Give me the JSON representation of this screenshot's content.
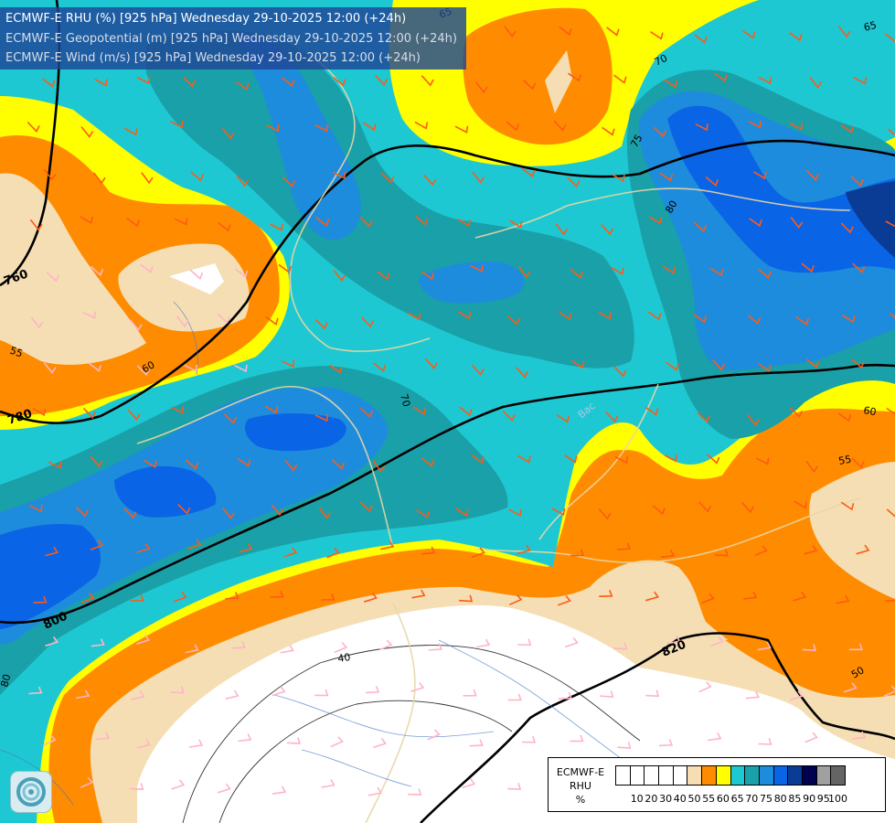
{
  "titles": [
    "ECMWF-E RHU (%) [925 hPa] Wednesday 29-10-2025 12:00 (+24h)",
    "ECMWF-E Geopotential (m) [925 hPa] Wednesday 29-10-2025 12:00 (+24h)",
    "ECMWF-E Wind (m/s) [925 hPa] Wednesday 29-10-2025 12:00 (+24h)"
  ],
  "legend": {
    "caption": [
      "ECMWF-E",
      "RHU",
      "%"
    ],
    "ticks": [
      "10",
      "20",
      "30",
      "40",
      "50",
      "55",
      "60",
      "65",
      "70",
      "75",
      "80",
      "85",
      "90",
      "95",
      "100"
    ],
    "colors": [
      "#ffffff",
      "#ffffff",
      "#ffffff",
      "#ffffff",
      "#ffffff",
      "#f5deb3",
      "#ff8c00",
      "#ffff00",
      "#1ec8d2",
      "#1aa0a8",
      "#1e8cdc",
      "#0a64e6",
      "#0a3c96",
      "#000050",
      "#a0a0a0",
      "#646464"
    ]
  },
  "geopotential_labels": [
    "760",
    "780",
    "800",
    "820"
  ],
  "rhu_labels": [
    "65",
    "65",
    "70",
    "75",
    "80",
    "55",
    "60",
    "70",
    "60",
    "55",
    "40",
    "50",
    "80"
  ],
  "place_labels": [
    "Bac"
  ],
  "colors": {
    "white": "#ffffff",
    "wheat": "#f5deb3",
    "orange": "#ff8c00",
    "yellow": "#ffff00",
    "cyan": "#1ec8d2",
    "teal": "#1aa0a8",
    "blue": "#1e8cdc",
    "mid_blue": "#0a64e6",
    "dark_blue": "#0a3c96",
    "navy": "#000050",
    "wind_barb": "#ff5a14",
    "border": "#e8d6a6",
    "river": "#3c78c8"
  },
  "icons": {
    "logo": "ecmwf-swirl-logo",
    "barb": "wind-barb-icon"
  }
}
